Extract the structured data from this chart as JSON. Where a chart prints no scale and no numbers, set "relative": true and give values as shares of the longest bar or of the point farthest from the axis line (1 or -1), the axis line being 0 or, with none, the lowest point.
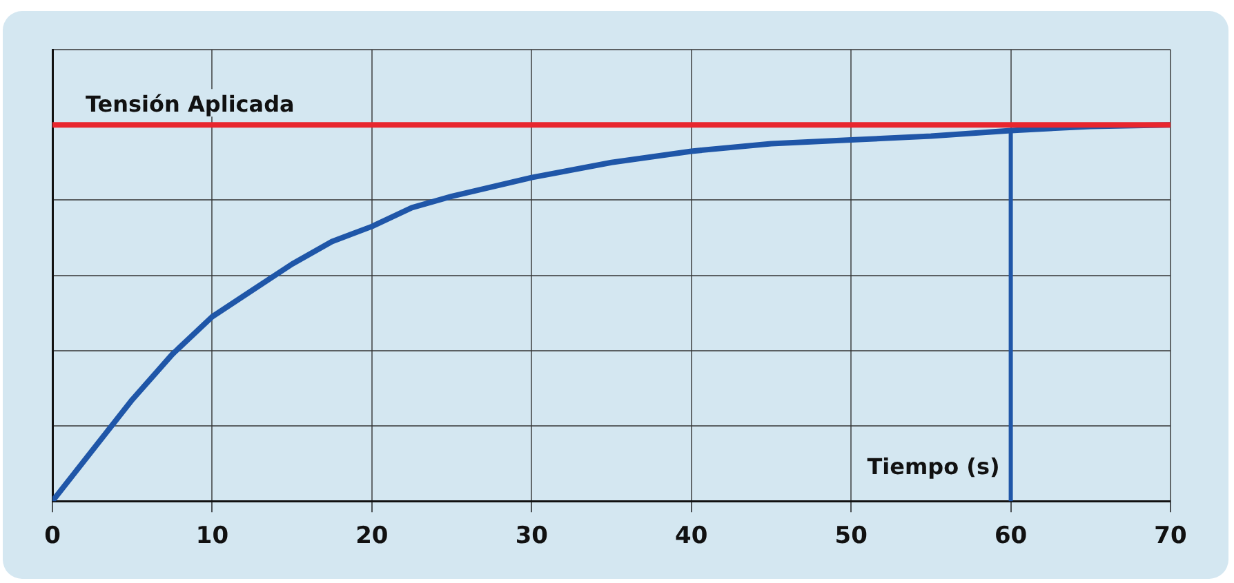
{
  "chart_data": {
    "type": "line",
    "relative": true,
    "xlabel": "Tiempo (s)",
    "x": [
      0,
      5,
      7.5,
      10,
      12.5,
      15,
      17.5,
      20,
      22.5,
      25,
      30,
      35,
      40,
      45,
      50,
      55,
      60,
      65,
      70
    ],
    "series": [
      {
        "color": "#1f56a8",
        "values": [
          0,
          0.27,
          0.39,
          0.49,
          0.56,
          0.63,
          0.69,
          0.73,
          0.78,
          0.81,
          0.86,
          0.9,
          0.93,
          0.95,
          0.96,
          0.97,
          0.985,
          0.996,
          1
        ]
      }
    ],
    "xlim": [
      0,
      70
    ],
    "xticks": [
      0,
      10,
      20,
      30,
      40,
      50,
      60,
      70
    ],
    "grid": true,
    "legend": false,
    "marker": "none",
    "line_style": "solid",
    "ref_lines": [
      {
        "axis": "y",
        "value": 1,
        "label": "Tensión Aplicada",
        "color": "#e8262e"
      },
      {
        "axis": "x",
        "value": 60,
        "color": "#1f56a8"
      }
    ]
  }
}
